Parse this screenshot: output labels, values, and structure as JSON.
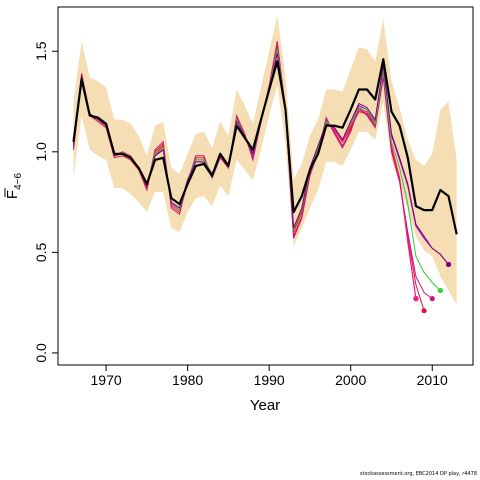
{
  "chart_data": {
    "type": "line",
    "title": "",
    "xlabel": "Year",
    "ylabel_main": "F",
    "ylabel_sub": "4−6",
    "xlim": [
      1964.1,
      2015.0
    ],
    "ylim": [
      -0.06,
      1.72
    ],
    "x_ticks": [
      1970,
      1980,
      1990,
      2000,
      2010
    ],
    "y_ticks": [
      0.0,
      0.5,
      1.0,
      1.5
    ],
    "y_tick_labels": [
      "0.0",
      "0.5",
      "1.0",
      "1.5"
    ],
    "grid": false,
    "legend": "none",
    "colors": {
      "band": "#f5deb3",
      "main": "#000000",
      "retro": [
        "#ff0000",
        "#dc143c",
        "#ff1493",
        "#c71585",
        "#9400d3",
        "#32cd32",
        "#800080"
      ]
    },
    "band": {
      "x": [
        1966,
        1967,
        1968,
        1969,
        1970,
        1971,
        1972,
        1973,
        1974,
        1975,
        1976,
        1977,
        1978,
        1979,
        1980,
        1981,
        1982,
        1983,
        1984,
        1985,
        1986,
        1987,
        1988,
        1989,
        1990,
        1991,
        1992,
        1993,
        1994,
        1995,
        1996,
        1997,
        1998,
        1999,
        2000,
        2001,
        2002,
        2003,
        2004,
        2005,
        2006,
        2007,
        2008,
        2009,
        2010,
        2011,
        2012,
        2013
      ],
      "upper": [
        1.25,
        1.55,
        1.37,
        1.35,
        1.32,
        1.16,
        1.16,
        1.14,
        1.08,
        0.98,
        1.13,
        1.15,
        0.92,
        0.89,
        0.99,
        1.09,
        1.1,
        1.02,
        1.15,
        1.08,
        1.31,
        1.23,
        1.14,
        1.32,
        1.5,
        1.68,
        1.37,
        0.86,
        0.94,
        1.08,
        1.16,
        1.31,
        1.31,
        1.3,
        1.41,
        1.52,
        1.51,
        1.45,
        1.66,
        1.35,
        1.22,
        1.06,
        0.96,
        0.93,
        0.99,
        1.21,
        1.25,
        0.96
      ],
      "lower": [
        0.87,
        1.18,
        1.01,
        0.98,
        0.96,
        0.82,
        0.82,
        0.79,
        0.75,
        0.7,
        0.8,
        0.8,
        0.62,
        0.6,
        0.7,
        0.77,
        0.78,
        0.73,
        0.83,
        0.78,
        0.96,
        0.91,
        0.86,
        1.01,
        1.18,
        1.33,
        1.04,
        0.53,
        0.62,
        0.72,
        0.81,
        0.95,
        0.95,
        0.93,
        1.01,
        1.1,
        1.1,
        1.06,
        1.25,
        0.96,
        0.84,
        0.71,
        0.58,
        0.51,
        0.48,
        0.38,
        0.31,
        0.24
      ]
    },
    "main": {
      "name": "final",
      "x": [
        1966,
        1967,
        1968,
        1969,
        1970,
        1971,
        1972,
        1973,
        1974,
        1975,
        1976,
        1977,
        1978,
        1979,
        1980,
        1981,
        1982,
        1983,
        1984,
        1985,
        1986,
        1987,
        1988,
        1989,
        1990,
        1991,
        1992,
        1993,
        1994,
        1995,
        1996,
        1997,
        1998,
        1999,
        2000,
        2001,
        2002,
        2003,
        2004,
        2005,
        2006,
        2007,
        2008,
        2009,
        2010,
        2011,
        2012,
        2013
      ],
      "y": [
        1.05,
        1.36,
        1.18,
        1.17,
        1.14,
        0.99,
        0.99,
        0.97,
        0.92,
        0.84,
        0.96,
        0.97,
        0.77,
        0.74,
        0.84,
        0.93,
        0.94,
        0.88,
        0.99,
        0.93,
        1.13,
        1.07,
        1.01,
        1.16,
        1.31,
        1.45,
        1.21,
        0.7,
        0.78,
        0.91,
        0.99,
        1.13,
        1.13,
        1.12,
        1.21,
        1.31,
        1.31,
        1.26,
        1.46,
        1.2,
        1.13,
        0.97,
        0.73,
        0.71,
        0.71,
        0.81,
        0.78,
        0.59
      ]
    },
    "retro_series": [
      {
        "end_year": 2008,
        "end_value": 0.27,
        "y": [
          1.04,
          1.39,
          1.19,
          1.16,
          1.13,
          0.98,
          0.99,
          0.97,
          0.92,
          0.82,
          0.99,
          1.03,
          0.74,
          0.71,
          0.86,
          0.96,
          0.96,
          0.89,
          0.98,
          0.93,
          1.16,
          1.08,
          0.98,
          1.16,
          1.31,
          1.5,
          1.22,
          0.6,
          0.7,
          0.9,
          1.02,
          1.15,
          1.11,
          1.05,
          1.12,
          1.2,
          1.19,
          1.13,
          1.4,
          1.03,
          0.87,
          0.55,
          0.27
        ]
      },
      {
        "end_year": 2009,
        "end_value": 0.21,
        "y": [
          1.01,
          1.37,
          1.18,
          1.15,
          1.12,
          0.97,
          0.98,
          0.96,
          0.91,
          0.81,
          1.0,
          1.04,
          0.73,
          0.7,
          0.85,
          0.97,
          0.97,
          0.88,
          0.98,
          0.92,
          1.17,
          1.08,
          0.97,
          1.15,
          1.32,
          1.53,
          1.21,
          0.58,
          0.68,
          0.89,
          1.01,
          1.16,
          1.1,
          1.03,
          1.11,
          1.21,
          1.19,
          1.13,
          1.38,
          1.01,
          0.86,
          0.58,
          0.34,
          0.21
        ]
      },
      {
        "end_year": 2008,
        "end_value": 0.27,
        "y": [
          1.03,
          1.38,
          1.19,
          1.16,
          1.13,
          0.98,
          0.99,
          0.97,
          0.92,
          0.82,
          0.98,
          1.02,
          0.74,
          0.71,
          0.86,
          0.96,
          0.96,
          0.89,
          0.98,
          0.93,
          1.15,
          1.08,
          0.98,
          1.16,
          1.32,
          1.51,
          1.22,
          0.61,
          0.71,
          0.91,
          1.02,
          1.15,
          1.11,
          1.05,
          1.13,
          1.21,
          1.2,
          1.14,
          1.39,
          1.02,
          0.86,
          0.56,
          0.27
        ]
      },
      {
        "end_year": 2010,
        "end_value": 0.27,
        "y": [
          1.02,
          1.37,
          1.18,
          1.16,
          1.13,
          0.98,
          1.0,
          0.98,
          0.92,
          0.82,
          1.01,
          1.05,
          0.72,
          0.69,
          0.85,
          0.98,
          0.98,
          0.87,
          0.97,
          0.92,
          1.18,
          1.09,
          0.96,
          1.15,
          1.33,
          1.55,
          1.21,
          0.57,
          0.67,
          0.88,
          1.0,
          1.17,
          1.09,
          1.02,
          1.1,
          1.22,
          1.18,
          1.12,
          1.37,
          1.0,
          0.85,
          0.6,
          0.38,
          0.3,
          0.27
        ]
      },
      {
        "end_year": 2012,
        "end_value": 0.44,
        "y": [
          1.03,
          1.38,
          1.18,
          1.16,
          1.13,
          0.98,
          0.99,
          0.97,
          0.92,
          0.83,
          0.98,
          1.01,
          0.75,
          0.72,
          0.86,
          0.95,
          0.95,
          0.89,
          0.98,
          0.93,
          1.15,
          1.08,
          0.99,
          1.16,
          1.31,
          1.49,
          1.22,
          0.62,
          0.72,
          0.92,
          1.03,
          1.14,
          1.12,
          1.06,
          1.15,
          1.23,
          1.21,
          1.15,
          1.42,
          1.08,
          0.96,
          0.83,
          0.63,
          0.57,
          0.52,
          0.49,
          0.44
        ]
      },
      {
        "end_year": 2011,
        "end_value": 0.31,
        "y": [
          1.04,
          1.38,
          1.19,
          1.16,
          1.13,
          0.98,
          0.99,
          0.97,
          0.92,
          0.83,
          0.99,
          1.02,
          0.75,
          0.71,
          0.86,
          0.96,
          0.96,
          0.89,
          0.98,
          0.93,
          1.16,
          1.08,
          0.99,
          1.16,
          1.31,
          1.51,
          1.22,
          0.61,
          0.71,
          0.91,
          1.02,
          1.15,
          1.12,
          1.06,
          1.14,
          1.22,
          1.21,
          1.14,
          1.41,
          1.05,
          0.92,
          0.74,
          0.48,
          0.4,
          0.35,
          0.31
        ]
      },
      {
        "end_year": 2012,
        "end_value": 0.44,
        "y": [
          1.04,
          1.38,
          1.19,
          1.16,
          1.13,
          0.98,
          0.99,
          0.97,
          0.92,
          0.83,
          0.98,
          1.01,
          0.75,
          0.72,
          0.86,
          0.95,
          0.95,
          0.89,
          0.98,
          0.93,
          1.15,
          1.08,
          0.99,
          1.16,
          1.31,
          1.49,
          1.22,
          0.62,
          0.72,
          0.92,
          1.03,
          1.14,
          1.12,
          1.06,
          1.15,
          1.24,
          1.22,
          1.16,
          1.43,
          1.09,
          0.97,
          0.84,
          0.64,
          0.58,
          0.52,
          0.49,
          0.44
        ]
      }
    ],
    "credit": "stockassessment.org, EBC2014 DP play, r4478"
  }
}
